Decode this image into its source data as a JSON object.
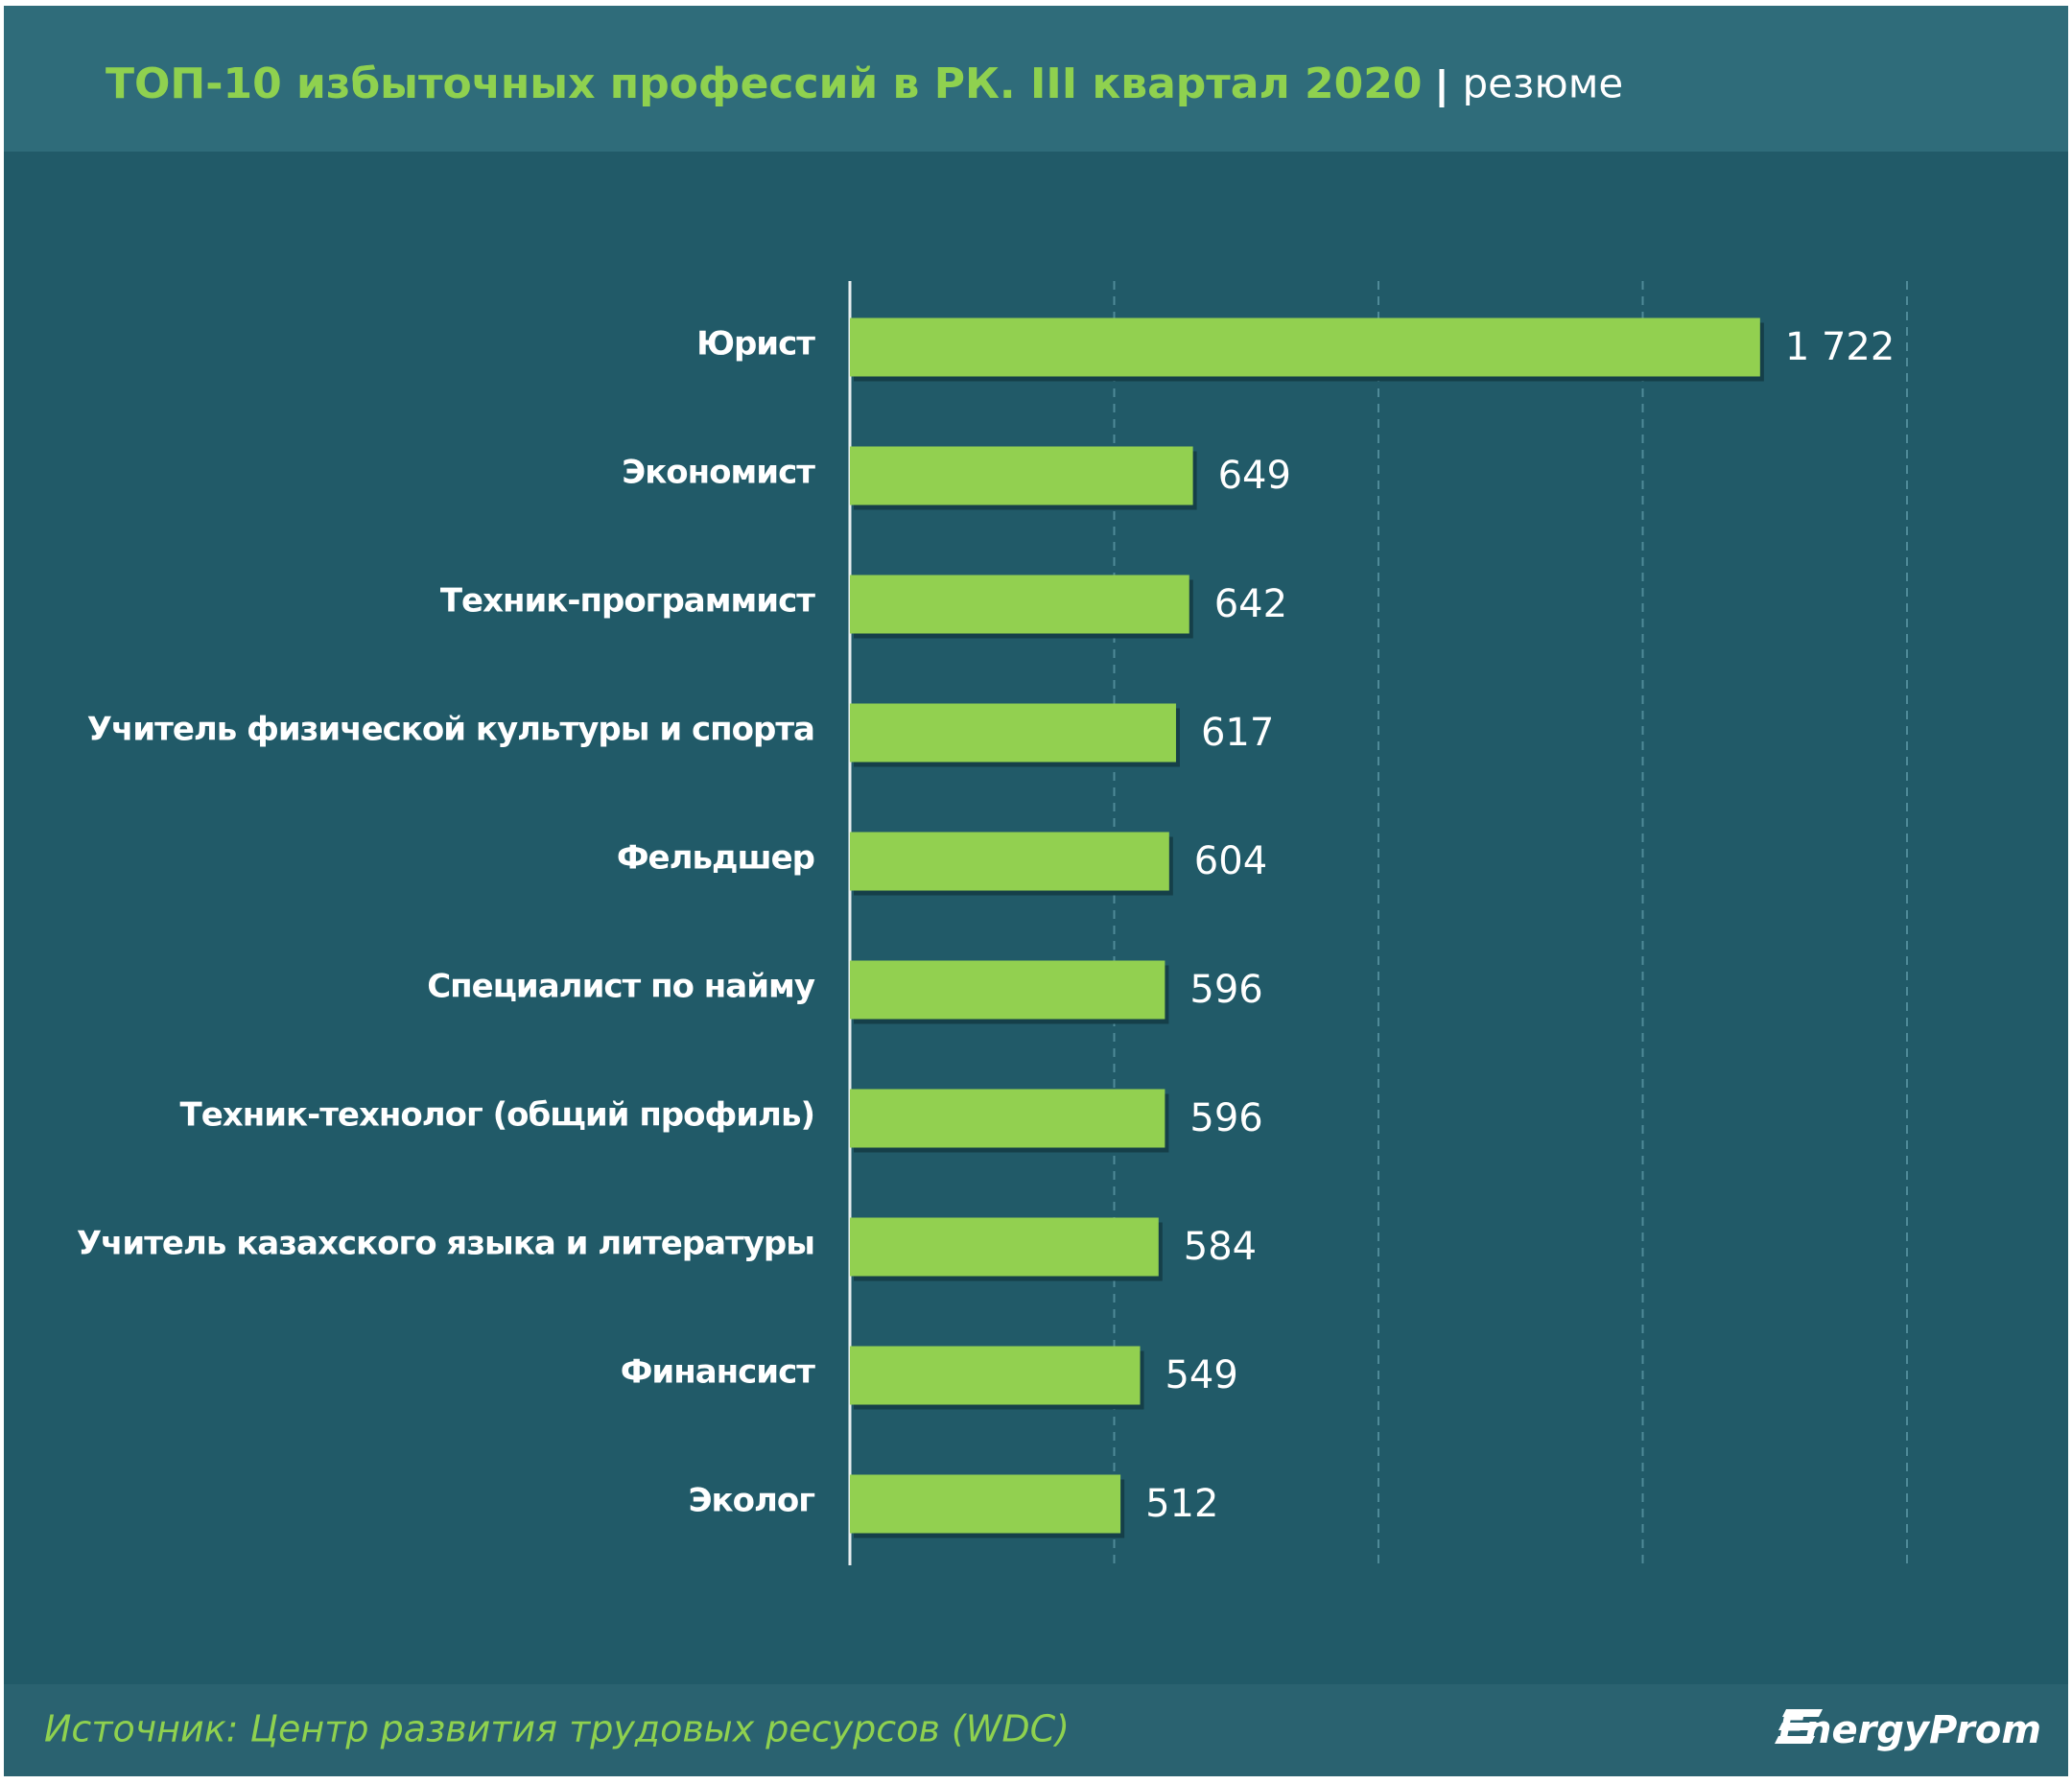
{
  "chart_data": {
    "type": "hbar",
    "title": "ТОП-10 избыточных профессий в РК.  III квартал 2020",
    "unit": "резюме",
    "source": "Источник: Центр развития трудовых ресурсов (WDC)",
    "logo": "EnergyProm",
    "categories": [
      "Юрист",
      "Экономист",
      "Техник-программист",
      "Учитель физической культуры и спорта",
      "Фельдшер",
      "Специалист по найму",
      "Техник-технолог (общий профиль)",
      "Учитель казахского языка и литературы",
      "Финансист",
      "Эколог"
    ],
    "values": [
      1722,
      649,
      642,
      617,
      604,
      596,
      596,
      584,
      549,
      512
    ],
    "value_labels": [
      "1 722",
      "649",
      "642",
      "617",
      "604",
      "596",
      "596",
      "584",
      "549",
      "512"
    ],
    "color": "#92d050",
    "xlim": [
      0,
      2000
    ],
    "xticks": [
      500,
      1000,
      1500,
      2000
    ],
    "grid": true
  }
}
